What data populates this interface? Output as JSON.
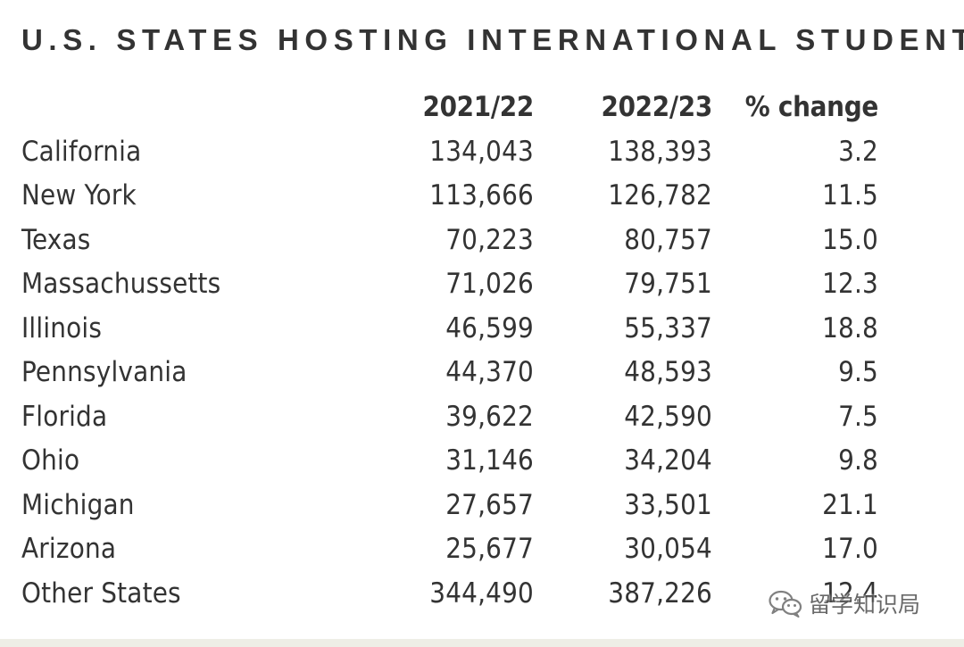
{
  "chart_data": {
    "type": "table",
    "title": "U.S. STATES HOSTING INTERNATIONAL STUDENTS",
    "columns": [
      "",
      "2021/22",
      "2022/23",
      "% change"
    ],
    "rows": [
      {
        "state": "California",
        "y2021_22": "134,043",
        "y2022_23": "138,393",
        "pct_change": "3.2"
      },
      {
        "state": "New York",
        "y2021_22": "113,666",
        "y2022_23": "126,782",
        "pct_change": "11.5"
      },
      {
        "state": "Texas",
        "y2021_22": "70,223",
        "y2022_23": "80,757",
        "pct_change": "15.0"
      },
      {
        "state": "Massachussetts",
        "y2021_22": "71,026",
        "y2022_23": "79,751",
        "pct_change": "12.3"
      },
      {
        "state": "Illinois",
        "y2021_22": "46,599",
        "y2022_23": "55,337",
        "pct_change": "18.8"
      },
      {
        "state": "Pennsylvania",
        "y2021_22": "44,370",
        "y2022_23": "48,593",
        "pct_change": "9.5"
      },
      {
        "state": "Florida",
        "y2021_22": "39,622",
        "y2022_23": "42,590",
        "pct_change": "7.5"
      },
      {
        "state": "Ohio",
        "y2021_22": "31,146",
        "y2022_23": "34,204",
        "pct_change": "9.8"
      },
      {
        "state": "Michigan",
        "y2021_22": "27,657",
        "y2022_23": "33,501",
        "pct_change": "21.1"
      },
      {
        "state": "Arizona",
        "y2021_22": "25,677",
        "y2022_23": "30,054",
        "pct_change": "17.0"
      },
      {
        "state": "Other States",
        "y2021_22": "344,490",
        "y2022_23": "387,226",
        "pct_change": "12.4"
      }
    ]
  },
  "watermark": {
    "text": "留学知识局",
    "icon": "wechat-icon"
  },
  "colors": {
    "text": "#333333",
    "background": "#ffffff",
    "bottom_band": "#eeeee6"
  }
}
